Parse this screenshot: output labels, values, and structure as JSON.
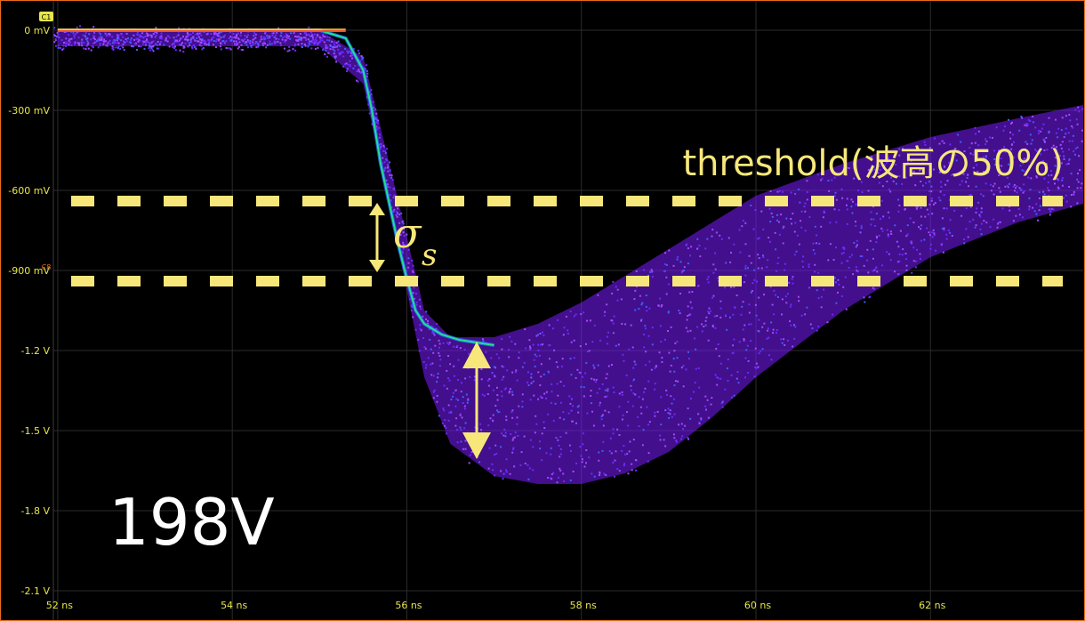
{
  "chart_data": {
    "type": "scatter",
    "title": "",
    "xlabel": "",
    "ylabel": "",
    "x_unit": "ns",
    "xlim": [
      51.95,
      63.75
    ],
    "ylim": [
      -2.1,
      0.02
    ],
    "xticks": [
      "52 ns",
      "54 ns",
      "56 ns",
      "58 ns",
      "60 ns",
      "62 ns"
    ],
    "xtick_values": [
      52,
      54,
      56,
      58,
      60,
      62
    ],
    "yticks": [
      "0 mV",
      "-300 mV",
      "-600 mV",
      "-900 mV",
      "-1.2 V",
      "-1.5 V",
      "-1.8 V",
      "-2.1 V"
    ],
    "ytick_values": [
      0,
      -0.3,
      -0.6,
      -0.9,
      -1.2,
      -1.5,
      -1.8,
      -2.1
    ],
    "grid": true,
    "channel_tag": "C1",
    "channel_tag_2": "C8",
    "series": [
      {
        "values_description_note": "",
        "x": [
          52.0,
          52.5,
          53.0,
          53.5,
          54.0,
          54.5,
          55.0,
          55.3,
          55.5,
          55.6,
          55.7,
          55.8,
          55.9,
          56.0,
          56.1,
          56.2,
          56.4,
          56.6,
          56.8,
          57.0
        ],
        "y": [
          0.0,
          0.0,
          0.0,
          0.0,
          0.0,
          0.0,
          0.0,
          -0.03,
          -0.15,
          -0.3,
          -0.5,
          -0.65,
          -0.8,
          -0.93,
          -1.05,
          -1.1,
          -1.14,
          -1.16,
          -1.17,
          -1.18
        ]
      }
    ],
    "envelope_upper": {
      "x": [
        52.0,
        55.0,
        55.5,
        55.8,
        56.2,
        56.5,
        57.0,
        57.5,
        58.0,
        58.5,
        59.0,
        59.5,
        60.0,
        61.0,
        62.0,
        63.0,
        63.75
      ],
      "y": [
        0.0,
        0.0,
        -0.1,
        -0.5,
        -1.05,
        -1.15,
        -1.15,
        -1.1,
        -1.02,
        -0.92,
        -0.82,
        -0.72,
        -0.62,
        -0.5,
        -0.4,
        -0.33,
        -0.28
      ]
    },
    "envelope_lower": {
      "x": [
        52.0,
        55.0,
        55.5,
        55.8,
        56.2,
        56.5,
        57.0,
        57.5,
        58.0,
        58.5,
        59.0,
        59.5,
        60.0,
        61.0,
        62.0,
        63.0,
        63.75
      ],
      "y": [
        -0.06,
        -0.06,
        -0.2,
        -0.65,
        -1.3,
        -1.55,
        -1.67,
        -1.7,
        -1.7,
        -1.66,
        -1.58,
        -1.45,
        -1.3,
        -1.05,
        -0.85,
        -0.72,
        -0.65
      ]
    },
    "annotations": {
      "threshold_label": "threshold(波高の50%)",
      "threshold_upper_y": -0.64,
      "threshold_lower_y": -0.94,
      "sigma_symbol": "σ",
      "sigma_subscript": "s",
      "big_label": "198V"
    }
  },
  "colors": {
    "background": "#000000",
    "grid": "#2c2c2c",
    "tick_text": "#e7e64a",
    "trace_primary": "#7a1bff",
    "annotation": "#f7e77a",
    "big_label": "#ffffff",
    "frame": "#e86a1a"
  }
}
